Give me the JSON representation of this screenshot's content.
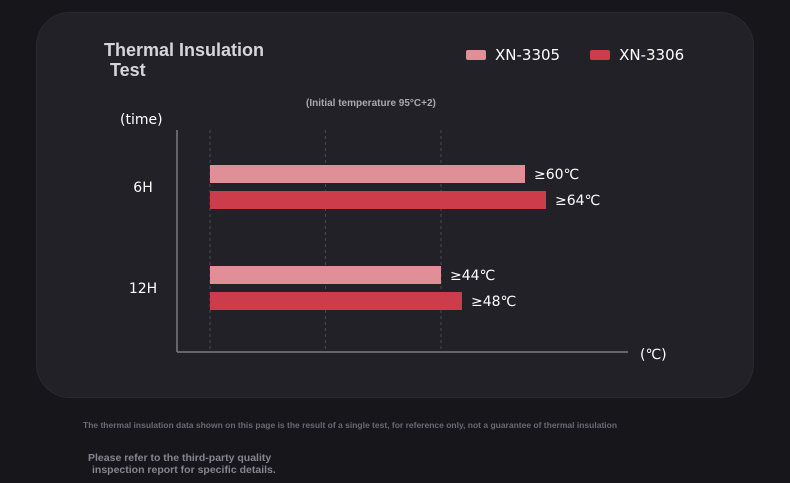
{
  "header": {
    "title_line1": "Thermal Insulation",
    "title_line2": "Test",
    "subtitle": "(Initial temperature 95°C+2)"
  },
  "legend": [
    {
      "name": "XN-3305",
      "color": "#e18f97"
    },
    {
      "name": "XN-3306",
      "color": "#cc3c4a"
    }
  ],
  "chart_data": {
    "type": "bar",
    "orientation": "horizontal",
    "title": "Thermal Insulation Test",
    "subtitle": "(Initial temperature 95°C+2)",
    "ylabel": "(time)",
    "xlabel": "(℃)",
    "categories": [
      "6H",
      "12H"
    ],
    "series": [
      {
        "name": "XN-3305",
        "color": "#e18f97",
        "values": [
          60,
          44
        ],
        "labels": [
          "≥60℃",
          "≥44℃"
        ]
      },
      {
        "name": "XN-3306",
        "color": "#cc3c4a",
        "values": [
          64,
          48
        ],
        "labels": [
          "≥64℃",
          "≥48℃"
        ]
      }
    ],
    "legend": "top-right",
    "grid": true,
    "xlim": [
      0,
      80
    ]
  },
  "footer": {
    "disclaimer": "The thermal insulation data shown on this page is the result of a single test, for reference only, not a guarantee of thermal insulation",
    "note_line1": "Please refer to the third-party quality",
    "note_line2": "inspection report for specific details."
  }
}
